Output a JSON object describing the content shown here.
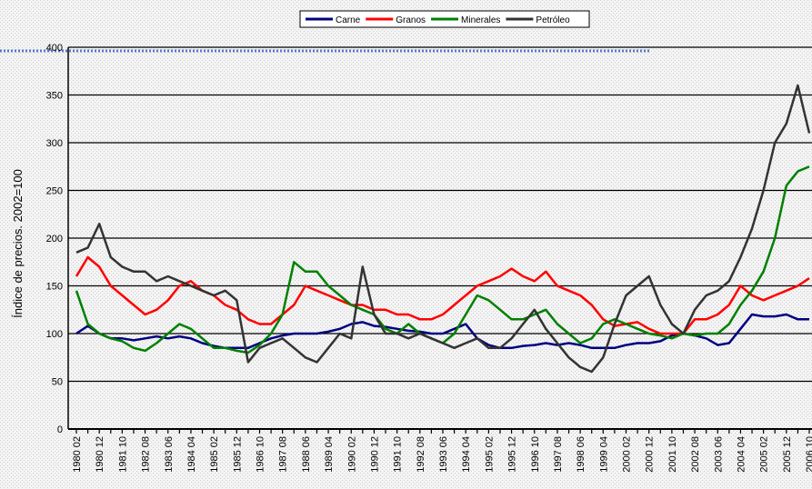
{
  "chart_data": {
    "type": "line",
    "y_label": "Índice de precios. 2002=100",
    "categories": [
      "1980 02",
      null,
      "1980 12",
      null,
      "1981 10",
      null,
      "1982 08",
      null,
      "1983 06",
      null,
      "1984 04",
      null,
      "1985 02",
      null,
      "1985 12",
      null,
      "1986 10",
      null,
      "1987 08",
      null,
      "1988 06",
      null,
      "1989 04",
      null,
      "1990 02",
      null,
      "1990 12",
      null,
      "1991 10",
      null,
      "1992 08",
      null,
      "1993 06",
      null,
      "1994 04",
      null,
      "1995 02",
      null,
      "1995 12",
      null,
      "1996 10",
      null,
      "1997 08",
      null,
      "1998 06",
      null,
      "1999 04",
      null,
      "2000 02",
      null,
      "2000 12",
      null,
      "2001 10",
      null,
      "2002 08",
      null,
      "2003 06",
      null,
      "2004 04",
      null,
      "2005 02",
      null,
      "2005 12",
      null,
      "2006 10"
    ],
    "series": [
      {
        "name": "Carne",
        "color": "#000080",
        "values": [
          100,
          108,
          100,
          95,
          95,
          93,
          95,
          97,
          95,
          97,
          95,
          90,
          87,
          85,
          85,
          85,
          90,
          95,
          98,
          100,
          100,
          100,
          102,
          105,
          110,
          112,
          108,
          107,
          105,
          103,
          102,
          100,
          100,
          105,
          110,
          95,
          88,
          85,
          85,
          87,
          88,
          90,
          88,
          90,
          88,
          85,
          85,
          85,
          88,
          90,
          90,
          92,
          98,
          100,
          98,
          95,
          88,
          90,
          105,
          120,
          118,
          118,
          120,
          115,
          115
        ]
      },
      {
        "name": "Granos",
        "color": "#ff0000",
        "values": [
          160,
          180,
          170,
          150,
          140,
          130,
          120,
          125,
          135,
          150,
          155,
          145,
          140,
          130,
          125,
          115,
          110,
          110,
          120,
          130,
          150,
          145,
          140,
          135,
          130,
          130,
          125,
          125,
          120,
          120,
          115,
          115,
          120,
          130,
          140,
          150,
          155,
          160,
          168,
          160,
          155,
          165,
          150,
          145,
          140,
          130,
          115,
          108,
          110,
          112,
          105,
          100,
          100,
          100,
          115,
          115,
          120,
          130,
          150,
          140,
          135,
          140,
          145,
          150,
          158
        ]
      },
      {
        "name": "Minerales",
        "color": "#008000",
        "values": [
          145,
          110,
          100,
          95,
          92,
          85,
          82,
          90,
          100,
          110,
          105,
          95,
          85,
          85,
          82,
          80,
          88,
          100,
          120,
          175,
          165,
          165,
          150,
          140,
          130,
          125,
          120,
          105,
          100,
          110,
          100,
          95,
          90,
          100,
          120,
          140,
          135,
          125,
          115,
          115,
          120,
          125,
          110,
          100,
          90,
          95,
          110,
          115,
          110,
          105,
          100,
          98,
          95,
          100,
          98,
          100,
          100,
          110,
          130,
          145,
          165,
          200,
          255,
          270,
          275
        ]
      },
      {
        "name": "Petróleo",
        "color": "#333333",
        "values": [
          185,
          190,
          215,
          180,
          170,
          165,
          165,
          155,
          160,
          155,
          150,
          145,
          140,
          145,
          135,
          70,
          85,
          90,
          95,
          85,
          75,
          70,
          85,
          100,
          95,
          170,
          120,
          100,
          100,
          95,
          100,
          95,
          90,
          85,
          90,
          95,
          85,
          85,
          95,
          110,
          125,
          105,
          90,
          75,
          65,
          60,
          75,
          110,
          140,
          150,
          160,
          130,
          110,
          100,
          125,
          140,
          145,
          155,
          180,
          210,
          250,
          300,
          320,
          360,
          310
        ]
      }
    ],
    "ylim": [
      0,
      400
    ],
    "yticks": [
      0,
      50,
      100,
      150,
      200,
      250,
      300,
      350,
      400
    ],
    "grid": true
  }
}
